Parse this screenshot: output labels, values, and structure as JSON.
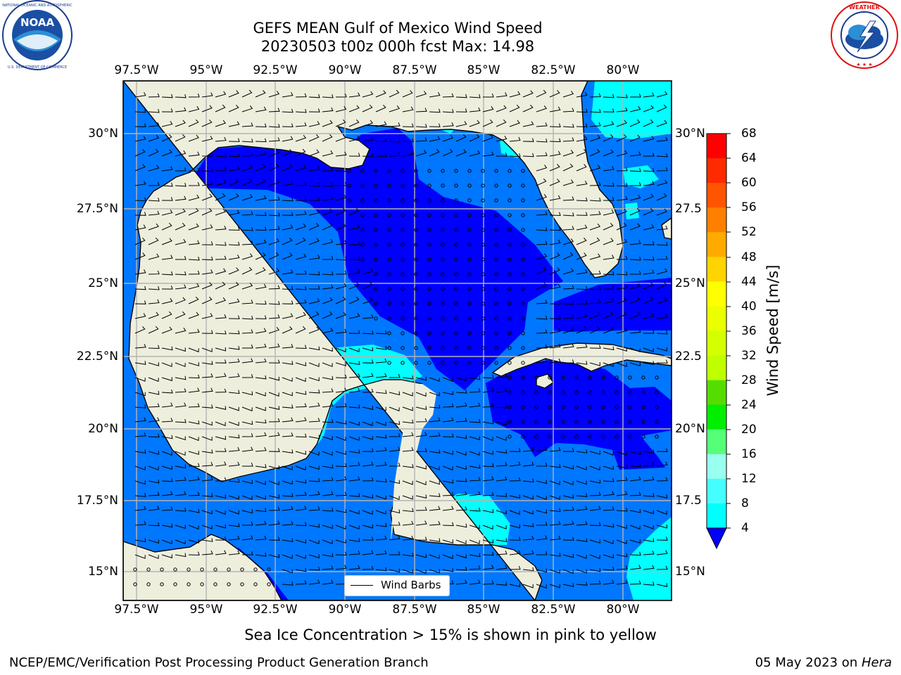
{
  "title": {
    "line1": "GEFS MEAN Gulf of Mexico Wind Speed",
    "line2": "20230503 t00z 000h fcst   Max: 14.98"
  },
  "lon_labels": [
    "97.5°W",
    "95°W",
    "92.5°W",
    "90°W",
    "87.5°W",
    "85°W",
    "82.5°W",
    "80°W"
  ],
  "lat_labels": [
    "30°N",
    "27.5°N",
    "25°N",
    "22.5°N",
    "20°N",
    "17.5°N",
    "15°N"
  ],
  "lat_labels_right": [
    "30°N",
    "27.5",
    "25°N",
    "22.5",
    "20°N",
    "17.5",
    "15°N"
  ],
  "legend": {
    "label": "Wind Barbs"
  },
  "colorbar": {
    "label": "Wind Speed [m/s]",
    "ticks": [
      "68",
      "64",
      "60",
      "56",
      "52",
      "48",
      "44",
      "40",
      "36",
      "32",
      "28",
      "24",
      "20",
      "16",
      "12",
      "8",
      "4"
    ],
    "colors": [
      "#ff0000",
      "#ff2a00",
      "#ff5500",
      "#ff8000",
      "#ffaa00",
      "#ffd400",
      "#ffff00",
      "#eaff00",
      "#d4ff00",
      "#bfff00",
      "#55dd00",
      "#00ee00",
      "#55ff77",
      "#99ffee",
      "#44ffff",
      "#00ffff",
      "#0077ff"
    ],
    "extend_color": "#0000ff"
  },
  "colors": {
    "land": "#eeeedd",
    "speed_4_8": "#0077ff",
    "speed_lt_4": "#0000ff",
    "speed_8_12": "#00ffff",
    "speed_12_16": "#44ffff"
  },
  "note": "Sea Ice Concentration > 15% is shown in pink to yellow",
  "footer": {
    "left": "NCEP/EMC/Verification Post Processing Product Generation Branch",
    "date": "05 May 2023 on ",
    "machine": "Hera"
  },
  "logos": {
    "left": {
      "icon": "noaa-logo",
      "text": "NOAA"
    },
    "right": {
      "icon": "nws-logo",
      "text": "NATIONAL WEATHER SERVICE"
    }
  }
}
